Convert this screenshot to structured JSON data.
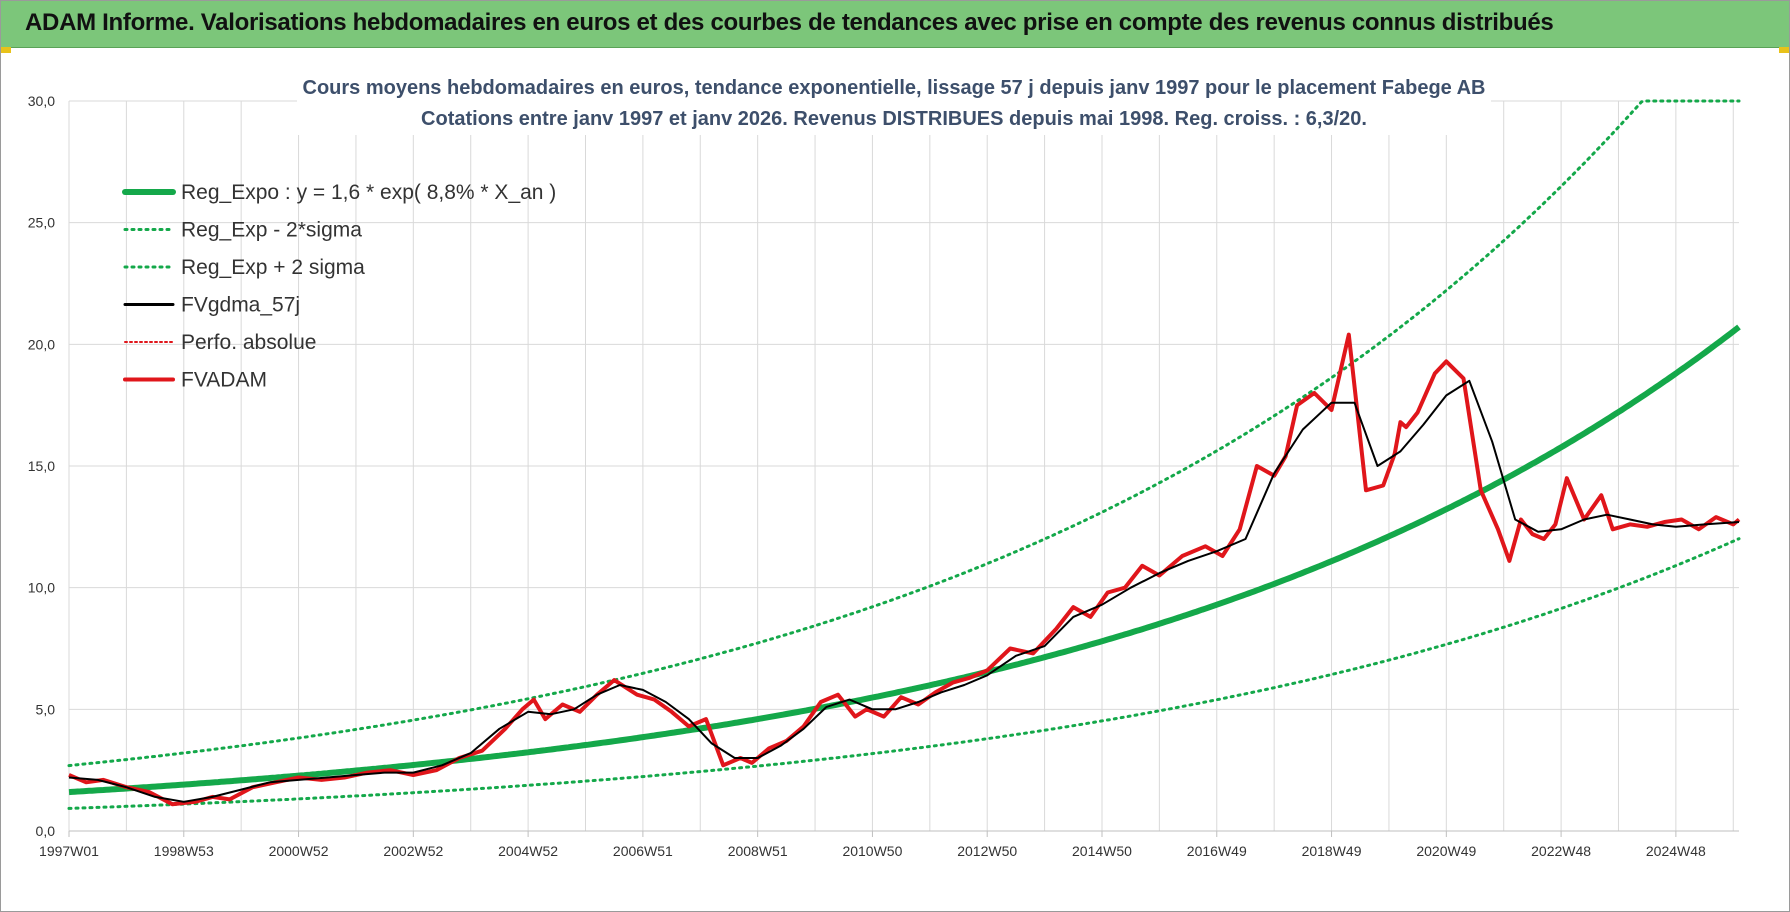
{
  "header": {
    "title": "ADAM Informe. Valorisations hebdomadaires en euros et des courbes de tendances avec prise en compte des revenus connus distribués"
  },
  "colors": {
    "header_bg": "#7cc67a",
    "reg_green": "#14a84a",
    "black": "#000000",
    "red": "#e0161b",
    "grid": "#d9d9d9"
  },
  "chart_data": {
    "type": "line",
    "title": "Cours moyens hebdomadaires en euros, tendance exponentielle, lissage 57 j depuis janv 1997  pour le placement Fabege AB",
    "subtitle": "Cotations entre janv 1997 et janv 2026. Revenus DISTRIBUES depuis mai 1998. Reg. croiss. : 6,3/20.",
    "xlabel": "",
    "ylabel": "",
    "ylim": [
      0,
      30
    ],
    "xlim": [
      1997.0,
      2026.1
    ],
    "y_ticks": [
      0,
      5,
      10,
      15,
      20,
      25,
      30
    ],
    "y_tick_labels": [
      "0,0",
      "5,0",
      "10,0",
      "15,0",
      "20,0",
      "25,0",
      "30,0"
    ],
    "x_ticks": [
      1997.0,
      1999.0,
      2001.0,
      2003.0,
      2005.0,
      2007.0,
      2009.0,
      2011.0,
      2013.0,
      2015.0,
      2017.0,
      2019.0,
      2021.0,
      2023.0,
      2025.0
    ],
    "x_tick_labels": [
      "1997W01",
      "1998W53",
      "2000W52",
      "2002W52",
      "2004W52",
      "2006W51",
      "2008W51",
      "2010W50",
      "2012W50",
      "2014W50",
      "2016W49",
      "2018W49",
      "2020W49",
      "2022W48",
      "2024W48"
    ],
    "grid": true,
    "legend": [
      "Reg_Expo : y = 1,6 * exp( 8,8% *  X_an )",
      "Reg_Exp - 2*sigma",
      "Reg_Exp + 2 sigma",
      "FVgdma_57j",
      "Perfo. absolue",
      "FVADAM"
    ],
    "legend_position": "top-left",
    "regression": {
      "a": 1.6,
      "b": 0.088,
      "x0": 1997.0,
      "lower_factor": 0.58,
      "upper_factor": 1.68,
      "cap": 30
    },
    "series": [
      {
        "name": "FVADAM",
        "style": "red-thick",
        "x": [
          1997.0,
          1997.3,
          1997.6,
          1998.0,
          1998.4,
          1998.8,
          1999.2,
          1999.5,
          1999.8,
          2000.2,
          2000.6,
          2001.0,
          2001.4,
          2001.8,
          2002.2,
          2002.6,
          2003.0,
          2003.4,
          2003.8,
          2004.2,
          2004.6,
          2004.9,
          2005.1,
          2005.3,
          2005.6,
          2005.9,
          2006.2,
          2006.5,
          2006.9,
          2007.2,
          2007.5,
          2007.8,
          2008.1,
          2008.4,
          2008.7,
          2008.9,
          2009.2,
          2009.5,
          2009.8,
          2010.1,
          2010.4,
          2010.7,
          2010.9,
          2011.2,
          2011.5,
          2011.8,
          2012.1,
          2012.4,
          2012.7,
          2013.0,
          2013.4,
          2013.8,
          2014.2,
          2014.5,
          2014.8,
          2015.1,
          2015.4,
          2015.7,
          2016.0,
          2016.4,
          2016.8,
          2017.1,
          2017.4,
          2017.7,
          2018.0,
          2018.2,
          2018.4,
          2018.7,
          2019.0,
          2019.3,
          2019.6,
          2019.9,
          2020.1,
          2020.2,
          2020.3,
          2020.5,
          2020.8,
          2021.0,
          2021.3,
          2021.6,
          2021.9,
          2022.1,
          2022.3,
          2022.5,
          2022.7,
          2022.9,
          2023.1,
          2023.4,
          2023.7,
          2023.9,
          2024.2,
          2024.5,
          2024.8,
          2025.1,
          2025.4,
          2025.7,
          2026.0,
          2026.1
        ],
        "values": [
          2.3,
          2.0,
          2.1,
          1.8,
          1.6,
          1.1,
          1.2,
          1.4,
          1.3,
          1.8,
          2.0,
          2.2,
          2.1,
          2.2,
          2.4,
          2.5,
          2.3,
          2.5,
          3.0,
          3.3,
          4.2,
          5.0,
          5.4,
          4.6,
          5.2,
          4.9,
          5.6,
          6.2,
          5.6,
          5.4,
          4.9,
          4.3,
          4.6,
          2.7,
          3.0,
          2.8,
          3.4,
          3.7,
          4.3,
          5.3,
          5.6,
          4.7,
          5.0,
          4.7,
          5.5,
          5.2,
          5.7,
          6.1,
          6.3,
          6.6,
          7.5,
          7.3,
          8.3,
          9.2,
          8.8,
          9.8,
          10.0,
          10.9,
          10.5,
          11.3,
          11.7,
          11.3,
          12.4,
          15.0,
          14.6,
          15.4,
          17.5,
          18.0,
          17.3,
          20.4,
          14.0,
          14.2,
          15.5,
          16.8,
          16.6,
          17.2,
          18.8,
          19.3,
          18.6,
          14.0,
          12.4,
          11.1,
          12.8,
          12.2,
          12.0,
          12.6,
          14.5,
          12.8,
          13.8,
          12.4,
          12.6,
          12.5,
          12.7,
          12.8,
          12.4,
          12.9,
          12.6,
          12.8
        ]
      },
      {
        "name": "FVgdma_57j",
        "style": "black-thin",
        "x": [
          1997.0,
          1997.5,
          1998.0,
          1998.5,
          1999.0,
          1999.5,
          2000.0,
          2000.5,
          2001.0,
          2001.5,
          2002.0,
          2002.5,
          2003.0,
          2003.5,
          2004.0,
          2004.5,
          2005.0,
          2005.4,
          2005.8,
          2006.2,
          2006.6,
          2007.0,
          2007.4,
          2007.8,
          2008.2,
          2008.6,
          2009.0,
          2009.4,
          2009.8,
          2010.2,
          2010.6,
          2011.0,
          2011.4,
          2011.8,
          2012.2,
          2012.6,
          2013.0,
          2013.5,
          2014.0,
          2014.5,
          2015.0,
          2015.5,
          2016.0,
          2016.5,
          2017.0,
          2017.5,
          2018.0,
          2018.5,
          2019.0,
          2019.4,
          2019.8,
          2020.2,
          2020.6,
          2021.0,
          2021.4,
          2021.8,
          2022.2,
          2022.6,
          2023.0,
          2023.4,
          2023.8,
          2024.2,
          2024.6,
          2025.0,
          2025.5,
          2026.1
        ],
        "values": [
          2.2,
          2.1,
          1.8,
          1.4,
          1.2,
          1.4,
          1.7,
          2.0,
          2.1,
          2.2,
          2.3,
          2.4,
          2.4,
          2.7,
          3.2,
          4.2,
          4.9,
          4.8,
          5.0,
          5.6,
          6.0,
          5.8,
          5.3,
          4.6,
          3.6,
          3.0,
          3.0,
          3.5,
          4.2,
          5.1,
          5.4,
          5.0,
          5.0,
          5.3,
          5.7,
          6.0,
          6.4,
          7.2,
          7.6,
          8.8,
          9.3,
          10.0,
          10.6,
          11.1,
          11.5,
          12.0,
          14.7,
          16.5,
          17.6,
          17.6,
          15.0,
          15.6,
          16.7,
          17.9,
          18.5,
          16.0,
          12.8,
          12.3,
          12.4,
          12.8,
          13.0,
          12.8,
          12.6,
          12.5,
          12.6,
          12.7
        ]
      }
    ]
  }
}
